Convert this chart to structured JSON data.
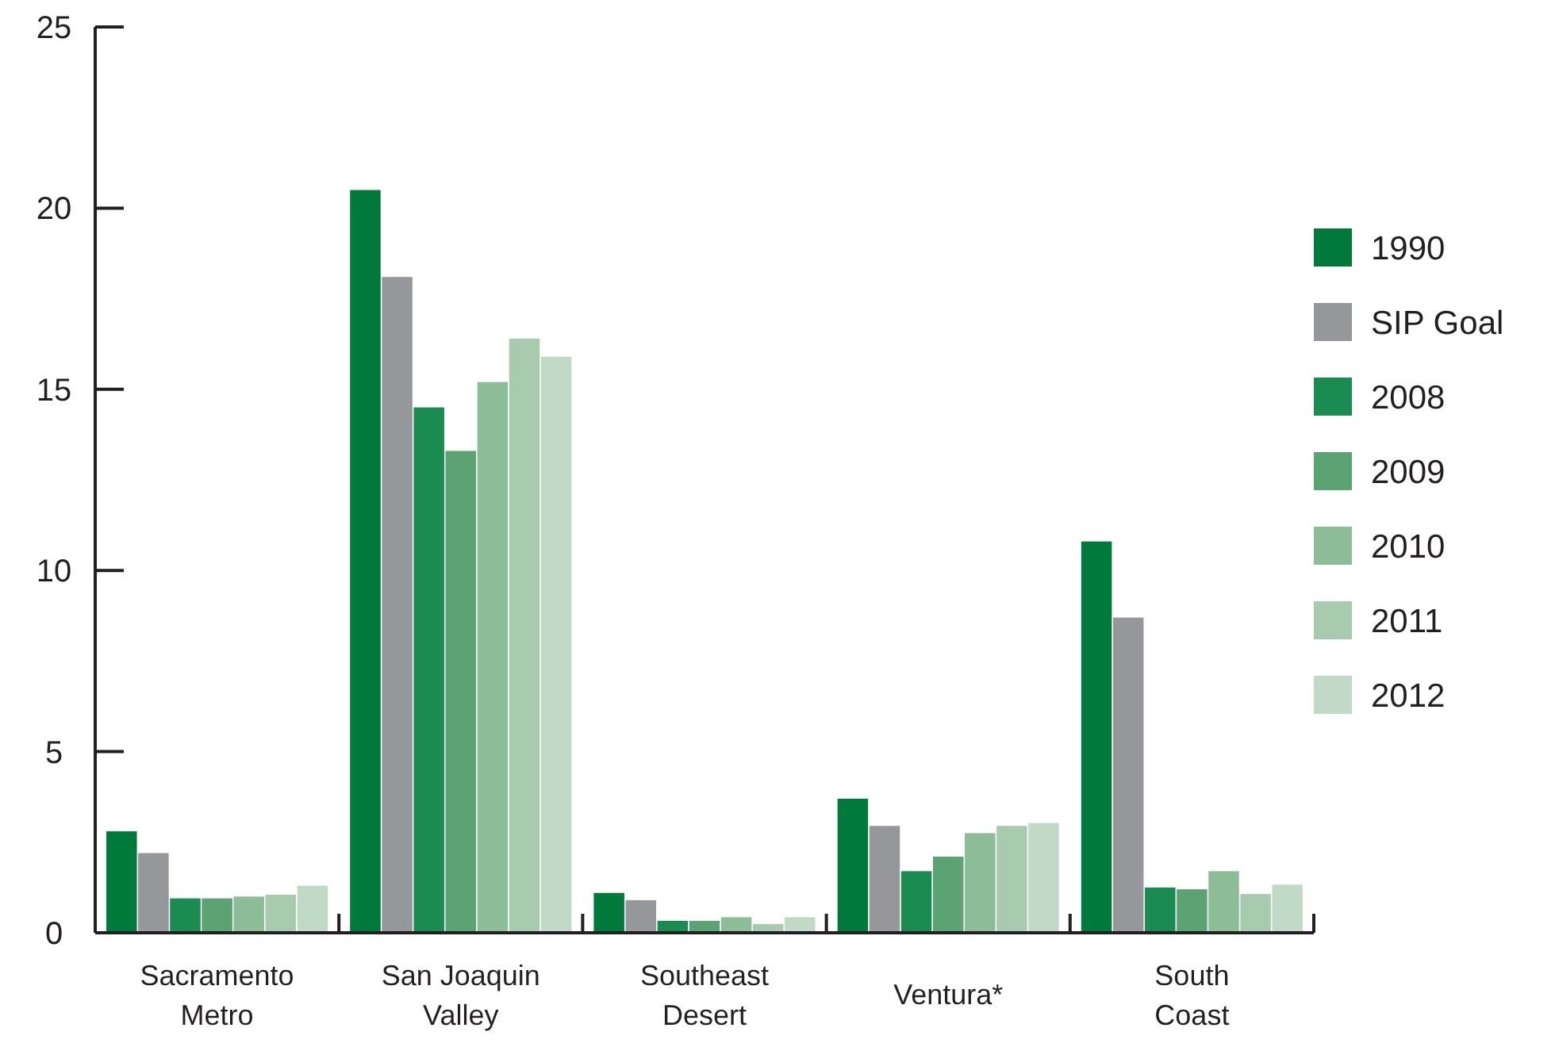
{
  "chart_data": {
    "type": "bar",
    "categories": [
      "Sacramento Metro",
      "San Joaquin Valley",
      "Southeast Desert",
      "Ventura*",
      "South Coast"
    ],
    "series": [
      {
        "name": "1990",
        "color": "#007a3a",
        "values": [
          2.8,
          20.5,
          1.1,
          3.7,
          10.8
        ]
      },
      {
        "name": "SIP Goal",
        "color": "#96979b",
        "values": [
          2.2,
          18.1,
          0.9,
          2.95,
          8.7
        ]
      },
      {
        "name": "2008",
        "color": "#1a8c52",
        "values": [
          0.95,
          14.5,
          0.33,
          1.7,
          1.25
        ]
      },
      {
        "name": "2009",
        "color": "#5ba372",
        "values": [
          0.95,
          13.3,
          0.33,
          2.1,
          1.2
        ]
      },
      {
        "name": "2010",
        "color": "#8dbd97",
        "values": [
          1.0,
          15.2,
          0.43,
          2.75,
          1.7
        ]
      },
      {
        "name": "2011",
        "color": "#a8cbb0",
        "values": [
          1.05,
          16.4,
          0.24,
          2.95,
          1.07
        ]
      },
      {
        "name": "2012",
        "color": "#c1dac7",
        "values": [
          1.3,
          15.9,
          0.43,
          3.03,
          1.33
        ]
      }
    ],
    "ylim": [
      0,
      25
    ],
    "yticks": [
      0,
      5,
      10,
      15,
      20,
      25
    ],
    "legend": "right"
  }
}
